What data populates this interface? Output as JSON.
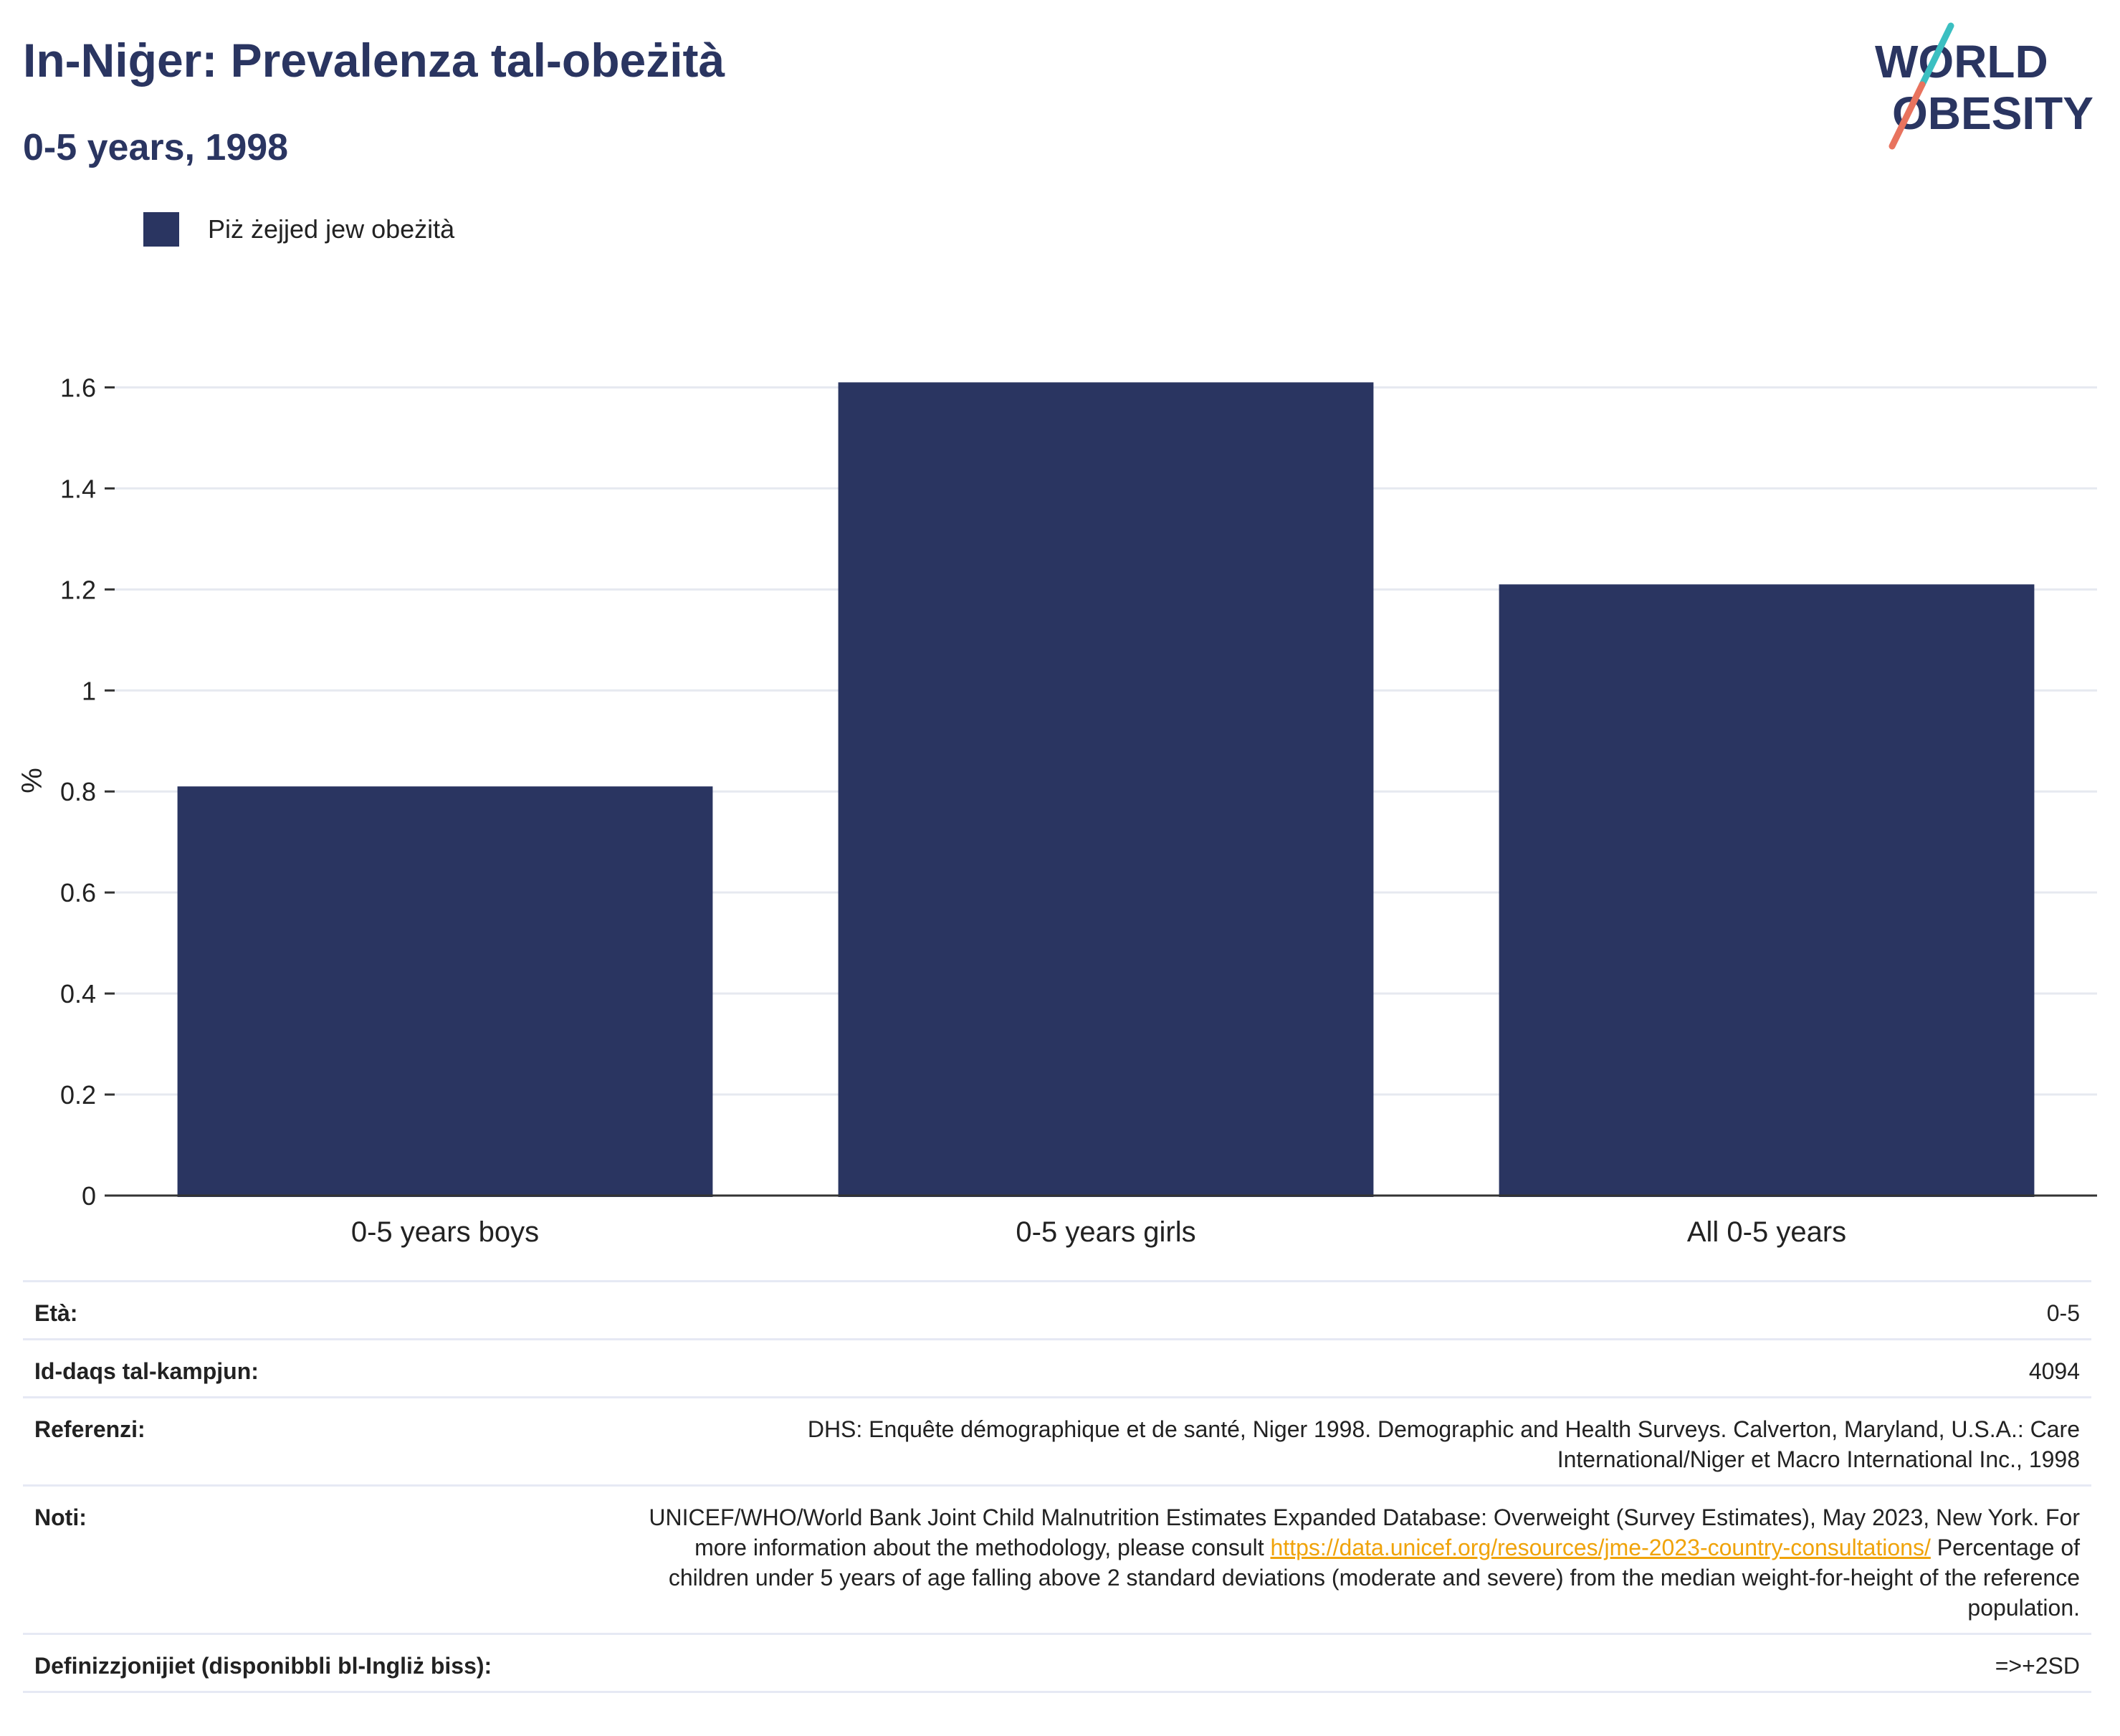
{
  "header": {
    "title": "In-Niġer: Prevalenza tal-obeżità",
    "subtitle": "0-5 years, 1998"
  },
  "logo": {
    "line1": "WORLD",
    "line2": "OBESITY"
  },
  "colors": {
    "bar": "#2a3561",
    "title": "#2a3561",
    "logo_text": "#2a3561",
    "logo_slash_top": "#3bbfc1",
    "logo_slash_bottom": "#e8735e",
    "link": "#f0a30a"
  },
  "chart_data": {
    "type": "bar",
    "categories": [
      "0-5 years boys",
      "0-5 years girls",
      "All 0-5 years"
    ],
    "series": [
      {
        "name": "Piż żejjed jew obeżità",
        "values": [
          0.81,
          1.61,
          1.21
        ]
      }
    ],
    "ylabel": "%",
    "ylim": [
      0,
      1.7
    ],
    "yticks": [
      0,
      0.2,
      0.4,
      0.6,
      0.8,
      1,
      1.2,
      1.4,
      1.6
    ],
    "grid": true,
    "legend_position": "top-left"
  },
  "info": {
    "rows": [
      {
        "key": "Età:",
        "value": "0-5"
      },
      {
        "key": "Id-daqs tal-kampjun:",
        "value": "4094"
      },
      {
        "key": "Referenzi:",
        "value": "DHS: Enquête démographique et de santé, Niger 1998. Demographic and Health Surveys. Calverton, Maryland, U.S.A.: Care International/Niger et Macro International Inc., 1998"
      },
      {
        "key": "Noti:",
        "value_before": "UNICEF/WHO/World Bank Joint Child Malnutrition Estimates Expanded Database: Overweight (Survey Estimates), May 2023, New York. For more information about the methodology, please consult ",
        "link": "https://data.unicef.org/resources/jme-2023-country-consultations/",
        "value_after": " Percentage of children under 5 years of age falling above 2 standard deviations (moderate and severe) from the median weight-for-height of the reference population."
      },
      {
        "key": "Definizzjonijiet (disponibbli bl-Ingliż biss):",
        "value": "=>+2SD"
      }
    ]
  }
}
